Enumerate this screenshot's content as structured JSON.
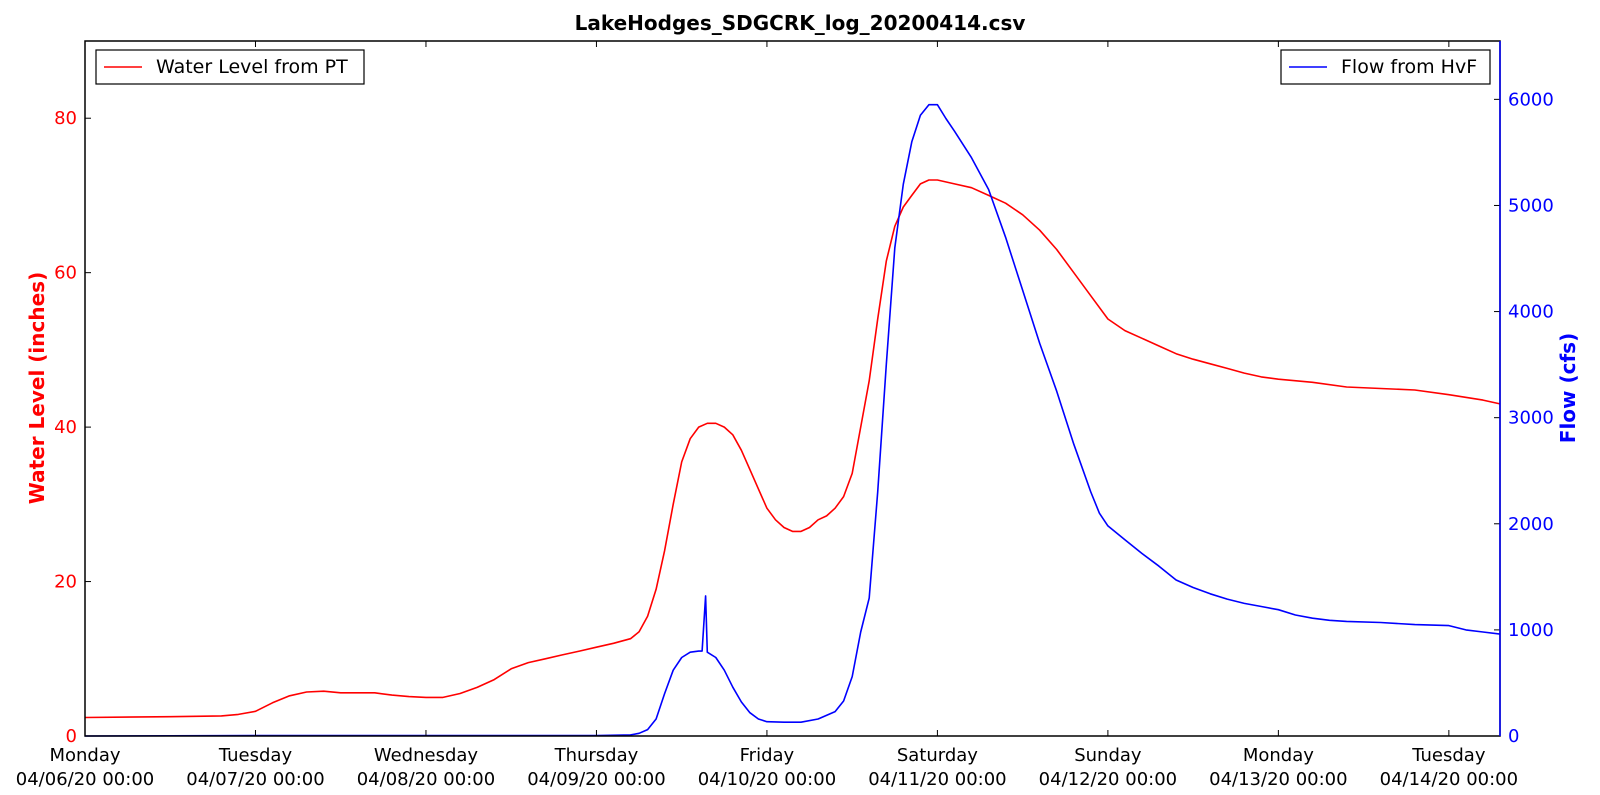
{
  "chart_data": {
    "type": "line",
    "title": "LakeHodges_SDGCRK_log_20200414.csv",
    "xlabel": "",
    "x_ticks": [
      {
        "day": "Monday",
        "date": "04/06/20 00:00",
        "t": 0
      },
      {
        "day": "Tuesday",
        "date": "04/07/20 00:00",
        "t": 1
      },
      {
        "day": "Wednesday",
        "date": "04/08/20 00:00",
        "t": 2
      },
      {
        "day": "Thursday",
        "date": "04/09/20 00:00",
        "t": 3
      },
      {
        "day": "Friday",
        "date": "04/10/20 00:00",
        "t": 4
      },
      {
        "day": "Saturday",
        "date": "04/11/20 00:00",
        "t": 5
      },
      {
        "day": "Sunday",
        "date": "04/12/20 00:00",
        "t": 6
      },
      {
        "day": "Monday",
        "date": "04/13/20 00:00",
        "t": 7
      },
      {
        "day": "Tuesday",
        "date": "04/14/20 00:00",
        "t": 8
      }
    ],
    "xlim": [
      0,
      8.3
    ],
    "left_axis": {
      "label": "Water Level (inches)",
      "color": "#ff0000",
      "ylim": [
        0,
        90
      ],
      "ticks": [
        "0",
        "20",
        "40",
        "60",
        "80"
      ]
    },
    "right_axis": {
      "label": "Flow (cfs)",
      "color": "#0000ff",
      "ylim": [
        0,
        6550
      ],
      "ticks": [
        "0",
        "1000",
        "2000",
        "3000",
        "4000",
        "5000",
        "6000"
      ]
    },
    "series": [
      {
        "name": "Water Level from PT",
        "axis": "left",
        "color": "#ff0000",
        "legend_location": "upper left",
        "points": [
          [
            0,
            2.4
          ],
          [
            0.5,
            2.5
          ],
          [
            0.8,
            2.6
          ],
          [
            0.9,
            2.8
          ],
          [
            1.0,
            3.2
          ],
          [
            1.1,
            4.3
          ],
          [
            1.2,
            5.2
          ],
          [
            1.3,
            5.7
          ],
          [
            1.4,
            5.8
          ],
          [
            1.5,
            5.6
          ],
          [
            1.6,
            5.6
          ],
          [
            1.7,
            5.6
          ],
          [
            1.8,
            5.3
          ],
          [
            1.9,
            5.1
          ],
          [
            2.0,
            5.0
          ],
          [
            2.1,
            5.0
          ],
          [
            2.2,
            5.5
          ],
          [
            2.3,
            6.3
          ],
          [
            2.4,
            7.3
          ],
          [
            2.5,
            8.7
          ],
          [
            2.6,
            9.5
          ],
          [
            2.7,
            10.0
          ],
          [
            2.8,
            10.5
          ],
          [
            2.9,
            11.0
          ],
          [
            3.0,
            11.5
          ],
          [
            3.1,
            12.0
          ],
          [
            3.2,
            12.6
          ],
          [
            3.25,
            13.5
          ],
          [
            3.3,
            15.5
          ],
          [
            3.35,
            19.0
          ],
          [
            3.4,
            24.0
          ],
          [
            3.45,
            30.0
          ],
          [
            3.5,
            35.5
          ],
          [
            3.55,
            38.5
          ],
          [
            3.6,
            40.0
          ],
          [
            3.65,
            40.5
          ],
          [
            3.7,
            40.5
          ],
          [
            3.75,
            40.0
          ],
          [
            3.8,
            39.0
          ],
          [
            3.85,
            37.0
          ],
          [
            3.9,
            34.5
          ],
          [
            3.95,
            32.0
          ],
          [
            4.0,
            29.5
          ],
          [
            4.05,
            28.0
          ],
          [
            4.1,
            27.0
          ],
          [
            4.15,
            26.5
          ],
          [
            4.2,
            26.5
          ],
          [
            4.25,
            27.0
          ],
          [
            4.3,
            28.0
          ],
          [
            4.35,
            28.5
          ],
          [
            4.4,
            29.5
          ],
          [
            4.45,
            31.0
          ],
          [
            4.5,
            34.0
          ],
          [
            4.55,
            40.0
          ],
          [
            4.6,
            46.0
          ],
          [
            4.65,
            54.0
          ],
          [
            4.7,
            61.5
          ],
          [
            4.75,
            66.0
          ],
          [
            4.8,
            68.5
          ],
          [
            4.85,
            70.0
          ],
          [
            4.9,
            71.5
          ],
          [
            4.95,
            72.0
          ],
          [
            5.0,
            72.0
          ],
          [
            5.1,
            71.5
          ],
          [
            5.2,
            71.0
          ],
          [
            5.3,
            70.0
          ],
          [
            5.4,
            69.0
          ],
          [
            5.5,
            67.5
          ],
          [
            5.6,
            65.5
          ],
          [
            5.7,
            63.0
          ],
          [
            5.8,
            60.0
          ],
          [
            5.9,
            57.0
          ],
          [
            6.0,
            54.0
          ],
          [
            6.1,
            52.5
          ],
          [
            6.2,
            51.5
          ],
          [
            6.3,
            50.5
          ],
          [
            6.4,
            49.5
          ],
          [
            6.5,
            48.8
          ],
          [
            6.6,
            48.2
          ],
          [
            6.7,
            47.6
          ],
          [
            6.8,
            47.0
          ],
          [
            6.9,
            46.5
          ],
          [
            7.0,
            46.2
          ],
          [
            7.2,
            45.8
          ],
          [
            7.4,
            45.2
          ],
          [
            7.6,
            45.0
          ],
          [
            7.8,
            44.8
          ],
          [
            8.0,
            44.2
          ],
          [
            8.2,
            43.5
          ],
          [
            8.3,
            43.0
          ]
        ]
      },
      {
        "name": "Flow from HvF",
        "axis": "right",
        "color": "#0000ff",
        "legend_location": "upper right",
        "points": [
          [
            0,
            0
          ],
          [
            1.0,
            5
          ],
          [
            2.0,
            5
          ],
          [
            3.0,
            5
          ],
          [
            3.2,
            10
          ],
          [
            3.25,
            25
          ],
          [
            3.3,
            60
          ],
          [
            3.35,
            160
          ],
          [
            3.4,
            400
          ],
          [
            3.45,
            620
          ],
          [
            3.5,
            740
          ],
          [
            3.55,
            790
          ],
          [
            3.6,
            800
          ],
          [
            3.62,
            800
          ],
          [
            3.64,
            1320
          ],
          [
            3.65,
            790
          ],
          [
            3.7,
            740
          ],
          [
            3.75,
            620
          ],
          [
            3.8,
            460
          ],
          [
            3.85,
            320
          ],
          [
            3.9,
            220
          ],
          [
            3.95,
            160
          ],
          [
            4.0,
            135
          ],
          [
            4.1,
            130
          ],
          [
            4.2,
            130
          ],
          [
            4.3,
            160
          ],
          [
            4.4,
            230
          ],
          [
            4.45,
            330
          ],
          [
            4.5,
            560
          ],
          [
            4.55,
            980
          ],
          [
            4.6,
            1300
          ],
          [
            4.65,
            2300
          ],
          [
            4.7,
            3500
          ],
          [
            4.75,
            4600
          ],
          [
            4.8,
            5200
          ],
          [
            4.85,
            5600
          ],
          [
            4.9,
            5850
          ],
          [
            4.95,
            5950
          ],
          [
            5.0,
            5950
          ],
          [
            5.05,
            5820
          ],
          [
            5.1,
            5700
          ],
          [
            5.2,
            5450
          ],
          [
            5.3,
            5150
          ],
          [
            5.4,
            4700
          ],
          [
            5.5,
            4200
          ],
          [
            5.6,
            3700
          ],
          [
            5.7,
            3250
          ],
          [
            5.8,
            2750
          ],
          [
            5.9,
            2300
          ],
          [
            5.95,
            2100
          ],
          [
            6.0,
            1980
          ],
          [
            6.1,
            1850
          ],
          [
            6.2,
            1720
          ],
          [
            6.3,
            1600
          ],
          [
            6.4,
            1470
          ],
          [
            6.5,
            1400
          ],
          [
            6.6,
            1340
          ],
          [
            6.7,
            1290
          ],
          [
            6.8,
            1250
          ],
          [
            6.9,
            1220
          ],
          [
            7.0,
            1190
          ],
          [
            7.1,
            1140
          ],
          [
            7.2,
            1110
          ],
          [
            7.3,
            1090
          ],
          [
            7.4,
            1080
          ],
          [
            7.6,
            1070
          ],
          [
            7.8,
            1050
          ],
          [
            8.0,
            1040
          ],
          [
            8.1,
            1000
          ],
          [
            8.2,
            980
          ],
          [
            8.3,
            960
          ]
        ]
      }
    ]
  }
}
